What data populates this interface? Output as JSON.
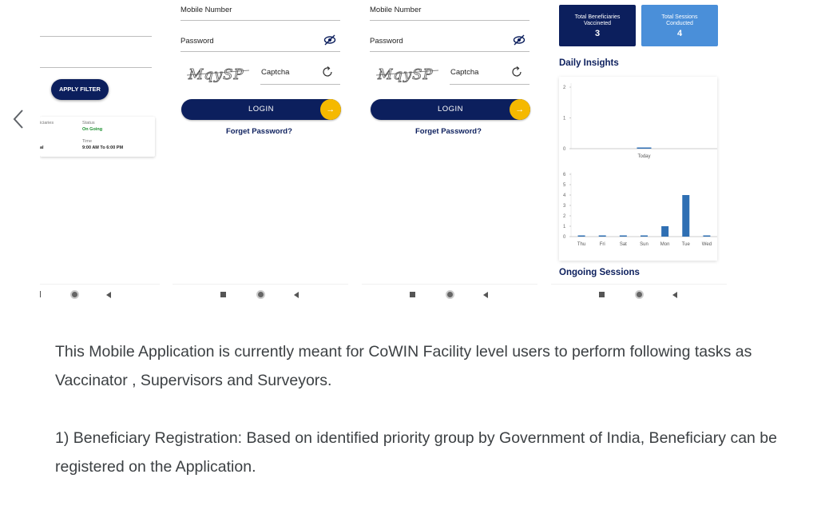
{
  "carousel": {
    "prev_icon": "chevron-left-icon"
  },
  "screen1": {
    "apply_filter": "APPLY FILTER",
    "card": {
      "col1_label": "iciaries",
      "status_label": "Status",
      "status_value": "On Going",
      "col1_value": "al",
      "time_label": "Time",
      "time_value": "9:00 AM To 6:00 PM"
    }
  },
  "login": {
    "mobile_label": "Mobile Number",
    "password_label": "Password",
    "captcha_text": "MqySP",
    "captcha_label": "Captcha",
    "login_button": "LOGIN",
    "forgot": "Forget Password?"
  },
  "dashboard": {
    "card1_label": "Total Beneficiaries Vaccineted",
    "card1_value": "3",
    "card2_label": "Total Sessions Conducted",
    "card2_value": "4",
    "daily_insights": "Daily Insights",
    "today_label": "Today",
    "ongoing_sessions": "Ongoing Sessions",
    "colors": {
      "navy": "#0c1f5d",
      "light_blue": "#4a8fd9",
      "bar": "#2f6fb3"
    }
  },
  "chart_data": [
    {
      "type": "bar",
      "categories": [
        "Today"
      ],
      "values": [
        0
      ],
      "ylim": [
        0,
        2
      ],
      "yticks": [
        "0",
        "1",
        "2"
      ]
    },
    {
      "type": "bar",
      "categories": [
        "Thu",
        "Fri",
        "Sat",
        "Sun",
        "Mon",
        "Tue",
        "Wed"
      ],
      "values": [
        0,
        0,
        0,
        0,
        1,
        4,
        0
      ],
      "ylim": [
        0,
        6
      ],
      "yticks": [
        "0",
        "1",
        "2",
        "3",
        "4",
        "5",
        "6"
      ]
    }
  ],
  "description": {
    "para1": "This Mobile Application is currently meant for CoWIN Facility level users to perform following tasks as Vaccinator , Supervisors and Surveyors.",
    "para2": "1) Beneficiary Registration: Based on identified priority group by Government of India, Beneficiary can be registered on the Application."
  }
}
